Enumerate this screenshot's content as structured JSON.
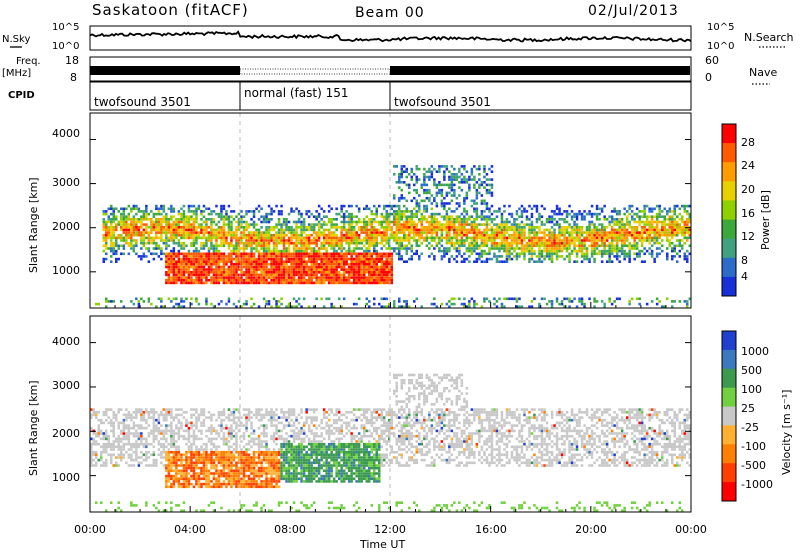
{
  "header": {
    "station": "Saskatoon (fitACF)",
    "beam": "Beam 00",
    "date": "02/Jul/2013"
  },
  "left_labels": {
    "nsky": "N.Sky",
    "freq_line1": "Freq.",
    "freq_line2": "[MHz]",
    "cpid": "CPID"
  },
  "right_labels": {
    "nsearch": "N.Search",
    "nave": "Nave"
  },
  "noise_panel": {
    "left_ticks": [
      "10^5",
      "10^0"
    ],
    "right_ticks": [
      "10^5",
      "10^0"
    ]
  },
  "freq_panel": {
    "left_ticks": [
      "18",
      "8"
    ],
    "right_ticks": [
      "60",
      "0"
    ]
  },
  "cpid_segments": [
    {
      "label": "twofsound 3501",
      "start_h": 0,
      "end_h": 6
    },
    {
      "label": "normal (fast) 151",
      "start_h": 6,
      "end_h": 12
    },
    {
      "label": "twofsound 3501",
      "start_h": 12,
      "end_h": 24
    }
  ],
  "xaxis": {
    "title": "Time UT",
    "ticks": [
      "00:00",
      "04:00",
      "08:00",
      "12:00",
      "16:00",
      "20:00",
      "00:00"
    ]
  },
  "chart_data": [
    {
      "type": "heatmap",
      "title": "",
      "xlabel": "Time UT",
      "ylabel": "Slant Range [km]",
      "x_range_hours": [
        0,
        24
      ],
      "ylim": [
        180,
        4600
      ],
      "yticks": [
        "4000",
        "3000",
        "2000",
        "1000"
      ],
      "colorbar": {
        "title": "Power [dB]",
        "ticks": [
          "28",
          "24",
          "20",
          "16",
          "12",
          "8",
          "4"
        ],
        "colors": [
          "#ff0000",
          "#ff5a00",
          "#ff9c00",
          "#e8d000",
          "#8fd000",
          "#3ca83c",
          "#40a080",
          "#2a6cc8",
          "#1830d8"
        ]
      },
      "echo_regions": [
        {
          "t0": 0.5,
          "t1": 24,
          "r0": 1200,
          "r1": 2500,
          "level": "mixed"
        },
        {
          "t0": 3,
          "t1": 12,
          "r0": 700,
          "r1": 1400,
          "level": "strong"
        },
        {
          "t0": 12,
          "t1": 16,
          "r0": 2300,
          "r1": 3400,
          "level": "weak"
        }
      ]
    },
    {
      "type": "heatmap",
      "title": "",
      "xlabel": "Time UT",
      "ylabel": "Slant Range [km]",
      "x_range_hours": [
        0,
        24
      ],
      "ylim": [
        180,
        4600
      ],
      "yticks": [
        "4000",
        "3000",
        "2000",
        "1000"
      ],
      "colorbar": {
        "title": "Velocity [m s⁻¹]",
        "ticks": [
          "1000",
          "500",
          "100",
          "25",
          "-25",
          "-100",
          "-500",
          "-1000"
        ],
        "colors": [
          "#2040d0",
          "#3a78c0",
          "#3c9a50",
          "#70d040",
          "#c8c8c8",
          "#ffb030",
          "#ff8000",
          "#ff4000",
          "#ff0000"
        ]
      },
      "echo_regions": [
        {
          "t0": 0,
          "t1": 24,
          "r0": 1200,
          "r1": 2500,
          "level": "ground-scatter"
        },
        {
          "t0": 3,
          "t1": 7.5,
          "r0": 700,
          "r1": 1500,
          "level": "negative"
        },
        {
          "t0": 7.5,
          "t1": 11.5,
          "r0": 800,
          "r1": 1700,
          "level": "positive"
        }
      ]
    }
  ]
}
